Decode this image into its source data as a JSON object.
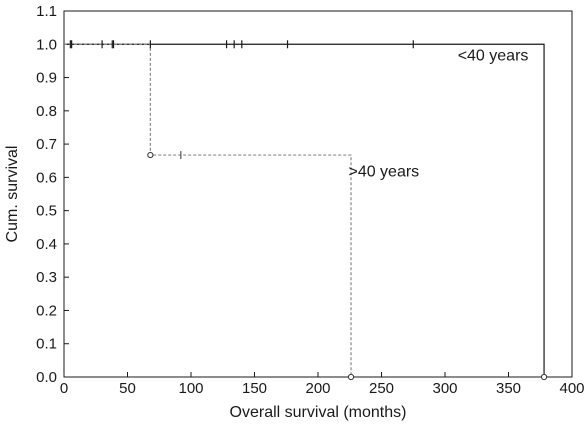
{
  "chart_data": {
    "type": "line",
    "xlabel": "Overall survival (months)",
    "ylabel": "Cum. survival",
    "xlim": [
      0,
      400
    ],
    "ylim": [
      0.0,
      1.1
    ],
    "xticks": [
      0,
      50,
      100,
      150,
      200,
      250,
      300,
      350,
      400
    ],
    "yticks": [
      "0.0",
      "0.1",
      "0.2",
      "0.3",
      "0.4",
      "0.5",
      "0.6",
      "0.7",
      "0.8",
      "0.9",
      "1.0",
      "1.1"
    ],
    "grid": false,
    "series": [
      {
        "name": "<40 years",
        "style": "solid",
        "color": "#1a1a1a",
        "steps": [
          [
            0,
            1.0
          ],
          [
            378,
            1.0
          ],
          [
            378,
            0.0
          ]
        ],
        "censored": [
          5,
          6,
          30,
          38,
          39,
          68,
          128,
          134,
          140,
          176,
          275
        ],
        "events": [
          378
        ]
      },
      {
        "name": ">40 years",
        "style": "dotted",
        "color": "#8a8a8a",
        "steps": [
          [
            0,
            1.0
          ],
          [
            68,
            1.0
          ],
          [
            68,
            0.667
          ],
          [
            226,
            0.667
          ],
          [
            226,
            0.0
          ]
        ],
        "censored": [
          92
        ],
        "events": [
          68,
          226
        ]
      }
    ],
    "annotations": [
      {
        "text": "<40 years",
        "x": 310,
        "y": 0.97
      },
      {
        "text": ">40 years",
        "x": 224,
        "y": 0.62
      }
    ]
  }
}
